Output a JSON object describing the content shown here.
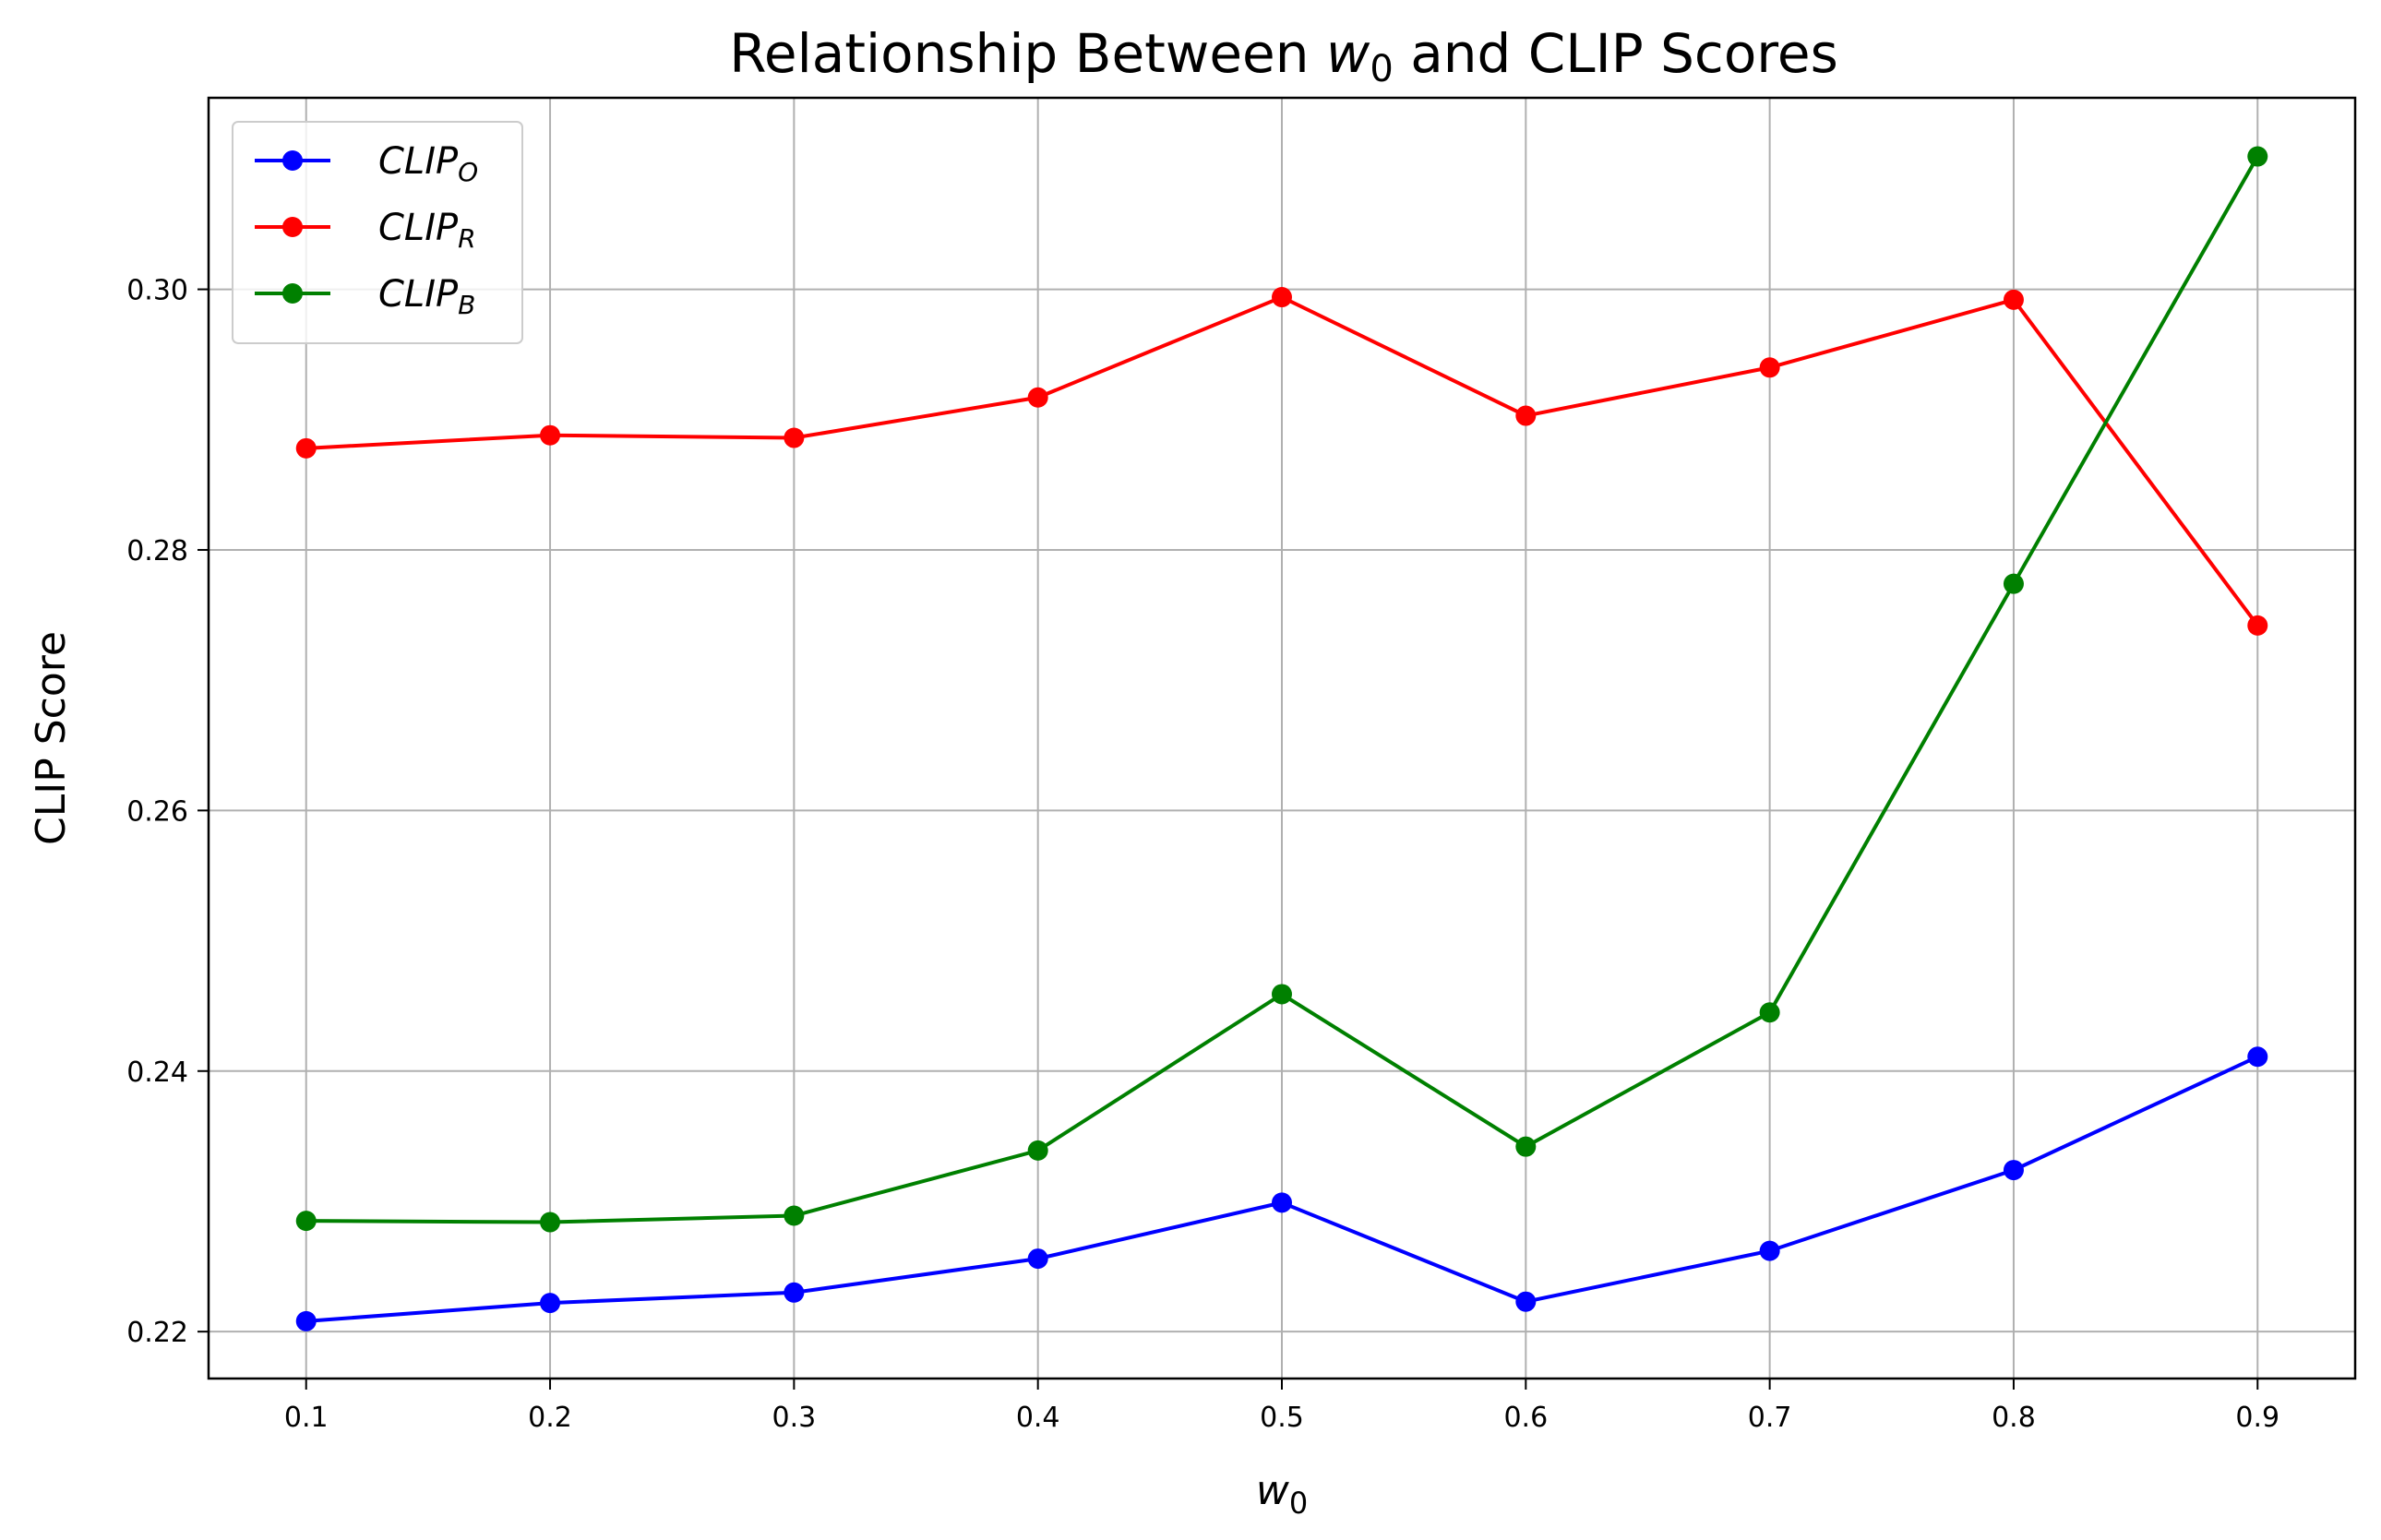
{
  "chart_data": {
    "type": "line",
    "title_prefix": "Relationship Between ",
    "title_var": "w",
    "title_var_sub": "0",
    "title_suffix": " and CLIP Scores",
    "xlabel_var": "w",
    "xlabel_sub": "0",
    "ylabel": "CLIP Score",
    "x": [
      0.1,
      0.2,
      0.3,
      0.4,
      0.5,
      0.6,
      0.7,
      0.8,
      0.9
    ],
    "x_tick_labels": [
      "0.1",
      "0.2",
      "0.3",
      "0.4",
      "0.5",
      "0.6",
      "0.7",
      "0.8",
      "0.9"
    ],
    "xlim": [
      0.06,
      0.94
    ],
    "y_ticks": [
      0.22,
      0.24,
      0.26,
      0.28,
      0.3
    ],
    "y_tick_labels": [
      "0.22",
      "0.24",
      "0.26",
      "0.28",
      "0.30"
    ],
    "ylim": [
      0.2164,
      0.3147
    ],
    "grid": true,
    "legend_position": "upper-left",
    "series": [
      {
        "name_main": "CLIP",
        "name_sub": "O",
        "color": "#0000ff",
        "values": [
          0.2208,
          0.2222,
          0.223,
          0.2256,
          0.2299,
          0.2223,
          0.2262,
          0.2324,
          0.2411
        ]
      },
      {
        "name_main": "CLIP",
        "name_sub": "R",
        "color": "#ff0000",
        "values": [
          0.2878,
          0.2888,
          0.2886,
          0.2917,
          0.2994,
          0.2903,
          0.294,
          0.2992,
          0.2742
        ]
      },
      {
        "name_main": "CLIP",
        "name_sub": "B",
        "color": "#008000",
        "values": [
          0.2285,
          0.2284,
          0.2289,
          0.2339,
          0.2459,
          0.2342,
          0.2445,
          0.2774,
          0.3102
        ]
      }
    ]
  }
}
